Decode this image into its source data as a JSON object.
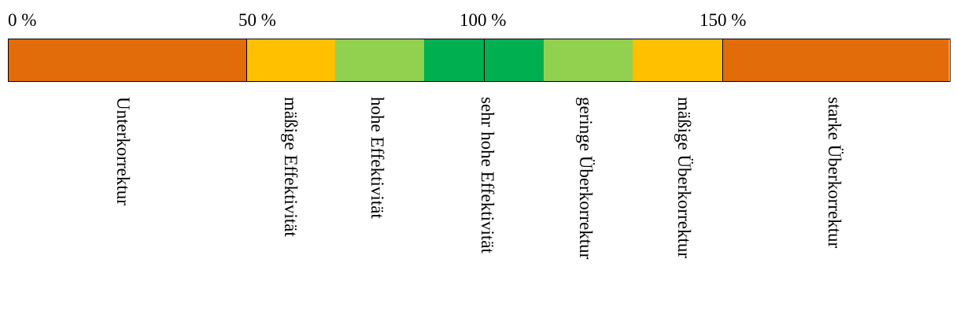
{
  "scale": {
    "ticks": [
      "0 %",
      "50 %",
      "100 %",
      "150 %"
    ]
  },
  "segments": [
    {
      "label": "Unterkorrektur",
      "from": 0,
      "to": 50,
      "color": "#E36C0A"
    },
    {
      "label": "mäßige Effektivität",
      "from": 50,
      "to": 65,
      "color": "#FFC000"
    },
    {
      "label": "hohe Effektivität",
      "from": 65,
      "to": 85,
      "color": "#92D050"
    },
    {
      "label": "sehr hohe Effektivität",
      "from": 85,
      "to": 115,
      "color": "#00B050"
    },
    {
      "label": "geringe Überkorrektur",
      "from": 115,
      "to": 135,
      "color": "#92D050"
    },
    {
      "label": "mäßige Überkorrektur",
      "from": 135,
      "to": 150,
      "color": "#FFC000"
    },
    {
      "label": "starke Überkorrektur",
      "from": 150,
      "to": 200,
      "color": "#E36C0A"
    }
  ]
}
